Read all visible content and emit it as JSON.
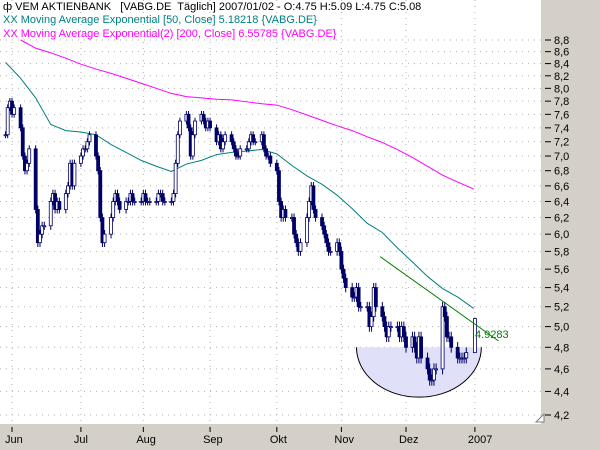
{
  "header": {
    "icon": "candlestick-icon",
    "line1": "VEM AKTIENBANK   [VABG.DE  Täglich] 2007/01/02 - O:4.75 H:5.09 L:4.75 C:5.08",
    "line2": "XX Moving Average Exponential [50, Close] 5.18218 {VABG.DE}",
    "line3": "XX Moving Average Exponential(2) [200, Close] 6.55785 {VABG.DE}"
  },
  "colors": {
    "candle": "#000066",
    "ema50": "#008080",
    "ema200": "#ff00ff",
    "trendline": "#008000",
    "annotation_fill": "#e0e0f8",
    "axis_panel": "#d4d0c8"
  },
  "chart_data": {
    "type": "candlestick",
    "symbol": "VABG.DE",
    "y_scale": "log",
    "ylim": [
      4.2,
      8.8
    ],
    "grid": true,
    "y_axis_side": "right",
    "y_ticks": [
      "8,8",
      "8,6",
      "8,4",
      "8,2",
      "8,0",
      "7,8",
      "7,6",
      "7,4",
      "7,2",
      "7,0",
      "6,8",
      "6,6",
      "6,4",
      "6,2",
      "6,0",
      "5,8",
      "5,6",
      "5,4",
      "5,2",
      "5,0",
      "4,8",
      "4,6",
      "4,4",
      "4,2"
    ],
    "x_ticks": [
      {
        "label": "Jun",
        "date": "2006-06-01"
      },
      {
        "label": "Jul",
        "date": "2006-07-03"
      },
      {
        "label": "Aug",
        "date": "2006-08-01"
      },
      {
        "label": "Sep",
        "date": "2006-09-01"
      },
      {
        "label": "Okt",
        "date": "2006-10-02"
      },
      {
        "label": "Nov",
        "date": "2006-11-01"
      },
      {
        "label": "Dez",
        "date": "2006-12-01"
      },
      {
        "label": "2007",
        "date": "2007-01-02"
      }
    ],
    "last_candle": {
      "date": "2007-01-02",
      "open": 4.75,
      "high": 5.09,
      "low": 4.75,
      "close": 5.08
    },
    "weeks": [
      {
        "week_of": "2006-05-29",
        "closes": [
          7.3,
          7.7,
          7.8,
          7.6,
          7.7
        ],
        "ema50": 8.42,
        "ema200": null
      },
      {
        "week_of": "2006-06-05",
        "closes": [
          7.4,
          7.0,
          6.8,
          6.9,
          7.1
        ],
        "ema50": 8.16,
        "ema200": 8.8
      },
      {
        "week_of": "2006-06-12",
        "closes": [
          6.3,
          5.9,
          6.0,
          6.1,
          6.1
        ],
        "ema50": 7.85,
        "ema200": 8.66
      },
      {
        "week_of": "2006-06-19",
        "closes": [
          6.4,
          6.5,
          6.3,
          6.4,
          6.3
        ],
        "ema50": 7.45,
        "ema200": 8.58
      },
      {
        "week_of": "2006-06-26",
        "closes": [
          6.5,
          6.6,
          6.9,
          6.6,
          6.9
        ],
        "ema50": 7.36,
        "ema200": 8.49
      },
      {
        "week_of": "2006-07-03",
        "closes": [
          7.0,
          7.1,
          7.1,
          7.2,
          7.3
        ],
        "ema50": 7.34,
        "ema200": 8.39
      },
      {
        "week_of": "2006-07-10",
        "closes": [
          7.0,
          6.8,
          6.2,
          5.9,
          6.0
        ],
        "ema50": 7.3,
        "ema200": 8.31
      },
      {
        "week_of": "2006-07-17",
        "closes": [
          6.2,
          6.4,
          6.5,
          6.4,
          6.3
        ],
        "ema50": 7.16,
        "ema200": 8.24
      },
      {
        "week_of": "2006-07-24",
        "closes": [
          6.4,
          6.4,
          6.5,
          6.4,
          6.4
        ],
        "ema50": 7.05,
        "ema200": 8.16
      },
      {
        "week_of": "2006-07-31",
        "closes": [
          6.4,
          6.5,
          6.4,
          6.4,
          6.4
        ],
        "ema50": 6.94,
        "ema200": 8.08
      },
      {
        "week_of": "2006-08-07",
        "closes": [
          6.4,
          6.5,
          6.5,
          6.4,
          6.4
        ],
        "ema50": 6.86,
        "ema200": 8.0
      },
      {
        "week_of": "2006-08-14",
        "closes": [
          6.4,
          6.5,
          6.9,
          7.3,
          7.5
        ],
        "ema50": 6.79,
        "ema200": 7.92
      },
      {
        "week_of": "2006-08-21",
        "closes": [
          7.6,
          7.4,
          7.0,
          7.3,
          7.5
        ],
        "ema50": 6.89,
        "ema200": 7.87
      },
      {
        "week_of": "2006-08-28",
        "closes": [
          7.6,
          7.5,
          7.4,
          7.5,
          7.4
        ],
        "ema50": 6.94,
        "ema200": 7.85
      },
      {
        "week_of": "2006-09-04",
        "closes": [
          7.2,
          7.3,
          7.1,
          7.2,
          7.3
        ],
        "ema50": 7.02,
        "ema200": 7.83
      },
      {
        "week_of": "2006-09-11",
        "closes": [
          7.2,
          7.1,
          7.0,
          7.0,
          7.1
        ],
        "ema50": 7.05,
        "ema200": 7.82
      },
      {
        "week_of": "2006-09-18",
        "closes": [
          7.1,
          7.2,
          7.3,
          7.2,
          7.2
        ],
        "ema50": 7.07,
        "ema200": 7.79
      },
      {
        "week_of": "2006-09-25",
        "closes": [
          7.3,
          7.1,
          7.0,
          7.0,
          6.9
        ],
        "ema50": 7.09,
        "ema200": 7.76
      },
      {
        "week_of": "2006-10-02",
        "closes": [
          6.8,
          6.4,
          6.2,
          6.3,
          6.2
        ],
        "ema50": 7.03,
        "ema200": 7.74
      },
      {
        "week_of": "2006-10-09",
        "closes": [
          6.2,
          6.0,
          5.9,
          5.8,
          5.9
        ],
        "ema50": 6.87,
        "ema200": 7.67
      },
      {
        "week_of": "2006-10-16",
        "closes": [
          6.2,
          6.4,
          6.6,
          6.3,
          6.2
        ],
        "ema50": 6.73,
        "ema200": 7.59
      },
      {
        "week_of": "2006-10-23",
        "closes": [
          6.1,
          6.0,
          5.9,
          5.8,
          5.8
        ],
        "ema50": 6.62,
        "ema200": 7.51
      },
      {
        "week_of": "2006-10-30",
        "closes": [
          5.9,
          5.8,
          5.6,
          5.5,
          5.4
        ],
        "ema50": 6.48,
        "ema200": 7.43
      },
      {
        "week_of": "2006-11-06",
        "closes": [
          5.3,
          5.3,
          5.4,
          5.2,
          5.2
        ],
        "ema50": 6.31,
        "ema200": 7.36
      },
      {
        "week_of": "2006-11-13",
        "closes": [
          5.2,
          5.0,
          5.1,
          5.4,
          5.2
        ],
        "ema50": 6.13,
        "ema200": 7.27
      },
      {
        "week_of": "2006-11-20",
        "closes": [
          5.1,
          5.0,
          4.9,
          5.0,
          5.0
        ],
        "ema50": 6.02,
        "ema200": 7.19
      },
      {
        "week_of": "2006-11-27",
        "closes": [
          5.0,
          4.9,
          5.0,
          4.9,
          4.8
        ],
        "ema50": 5.84,
        "ema200": 7.09
      },
      {
        "week_of": "2006-12-04",
        "closes": [
          4.9,
          4.8,
          4.7,
          4.9,
          4.7
        ],
        "ema50": 5.68,
        "ema200": 6.98
      },
      {
        "week_of": "2006-12-11",
        "closes": [
          4.6,
          4.5,
          4.5,
          4.6,
          4.6
        ],
        "ema50": 5.52,
        "ema200": 6.86
      },
      {
        "week_of": "2006-12-18",
        "closes": [
          5.2,
          5.1,
          4.9,
          4.9,
          4.8
        ],
        "ema50": 5.39,
        "ema200": 6.74
      },
      {
        "week_of": "2006-12-25",
        "closes": [
          4.7,
          4.7,
          4.7,
          4.7,
          4.75
        ],
        "ema50": 5.3,
        "ema200": 6.65
      },
      {
        "week_of": "2007-01-01",
        "closes": [
          null,
          5.08
        ],
        "ema50": 5.18218,
        "ema200": 6.55785
      }
    ],
    "trendline": {
      "start": {
        "date": "2006-11-19",
        "value": 5.74
      },
      "end": {
        "date": "2007-01-13",
        "value": 4.86
      },
      "label": "4.9283"
    },
    "rounding_bottom_annotation": {
      "start_date": "2006-11-08",
      "end_date": "2007-01-05",
      "top": 4.8,
      "bottom": 4.35
    }
  }
}
